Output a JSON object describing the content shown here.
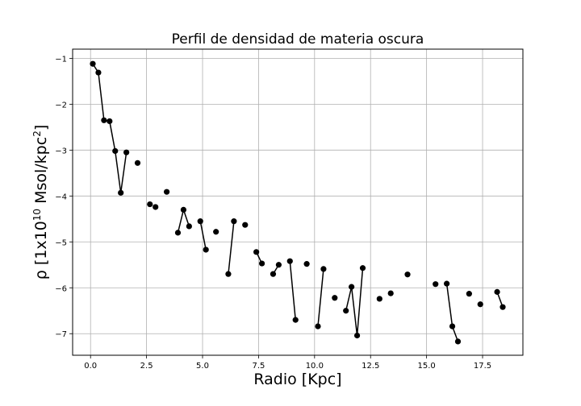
{
  "chart_data": {
    "type": "scatter",
    "title": "Perfil de densidad de materia oscura",
    "xlabel": "Radio [Kpc]",
    "ylabel": "ρ [1x10¹⁰ Msol/kpc²]",
    "xlim": [
      -0.8,
      19.3
    ],
    "ylim": [
      -7.47,
      -0.8
    ],
    "grid": true,
    "x_ticks": [
      0.0,
      2.5,
      5.0,
      7.5,
      10.0,
      12.5,
      15.0,
      17.5
    ],
    "x_tick_labels": [
      "0.0",
      "2.5",
      "5.0",
      "7.5",
      "10.0",
      "12.5",
      "15.0",
      "17.5"
    ],
    "y_ticks": [
      -1,
      -2,
      -3,
      -4,
      -5,
      -6,
      -7
    ],
    "y_tick_labels": [
      "−1",
      "−2",
      "−3",
      "−4",
      "−5",
      "−6",
      "−7"
    ],
    "marker_color": "#000000",
    "line_color": "#000000",
    "points": [
      [
        0.1,
        -1.12
      ],
      [
        0.35,
        -1.31
      ],
      [
        0.6,
        -2.35
      ],
      [
        0.85,
        -2.37
      ],
      [
        1.1,
        -3.02
      ],
      [
        1.35,
        -3.93
      ],
      [
        1.6,
        -3.05
      ],
      [
        2.1,
        -3.28
      ],
      [
        2.65,
        -4.18
      ],
      [
        2.9,
        -4.24
      ],
      [
        3.4,
        -3.91
      ],
      [
        3.9,
        -4.8
      ],
      [
        4.15,
        -4.3
      ],
      [
        4.4,
        -4.66
      ],
      [
        4.9,
        -4.55
      ],
      [
        5.15,
        -5.17
      ],
      [
        5.6,
        -4.78
      ],
      [
        6.15,
        -5.7
      ],
      [
        6.4,
        -4.55
      ],
      [
        6.9,
        -4.63
      ],
      [
        7.4,
        -5.22
      ],
      [
        7.65,
        -5.47
      ],
      [
        8.15,
        -5.7
      ],
      [
        8.4,
        -5.5
      ],
      [
        8.9,
        -5.42
      ],
      [
        9.15,
        -6.7
      ],
      [
        9.65,
        -5.48
      ],
      [
        10.15,
        -6.84
      ],
      [
        10.4,
        -5.59
      ],
      [
        10.9,
        -6.22
      ],
      [
        11.4,
        -6.5
      ],
      [
        11.65,
        -5.98
      ],
      [
        11.9,
        -7.04
      ],
      [
        12.15,
        -5.57
      ],
      [
        12.9,
        -6.24
      ],
      [
        13.4,
        -6.12
      ],
      [
        14.15,
        -5.71
      ],
      [
        15.4,
        -5.92
      ],
      [
        15.9,
        -5.91
      ],
      [
        16.15,
        -6.84
      ],
      [
        16.4,
        -7.17
      ],
      [
        16.9,
        -6.13
      ],
      [
        17.4,
        -6.36
      ],
      [
        18.15,
        -6.09
      ],
      [
        18.4,
        -6.42
      ]
    ],
    "line_segments": [
      [
        0,
        1
      ],
      [
        1,
        2
      ],
      [
        2,
        3
      ],
      [
        3,
        4
      ],
      [
        4,
        5
      ],
      [
        5,
        6
      ],
      [
        11,
        12
      ],
      [
        12,
        13
      ],
      [
        14,
        15
      ],
      [
        17,
        18
      ],
      [
        20,
        21
      ],
      [
        22,
        23
      ],
      [
        24,
        25
      ],
      [
        27,
        28
      ],
      [
        30,
        31
      ],
      [
        31,
        32
      ],
      [
        32,
        33
      ],
      [
        38,
        39
      ],
      [
        39,
        40
      ],
      [
        43,
        44
      ]
    ]
  }
}
